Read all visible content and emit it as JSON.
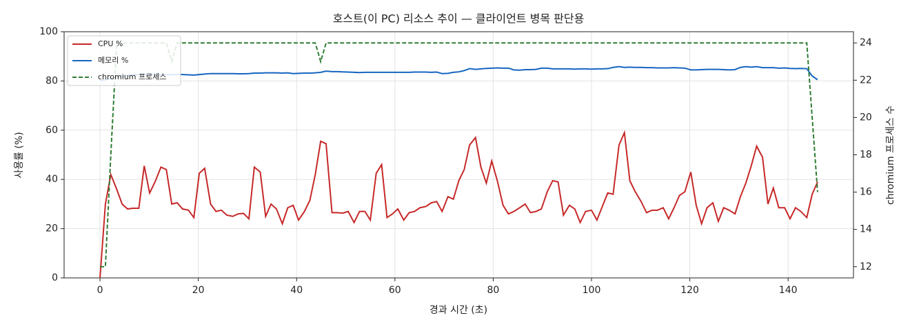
{
  "chart_data": {
    "type": "line",
    "title": "호스트(이 PC) 리소스 추이 — 클라이언트 병목 판단용",
    "x_label": "경과 시간 (초)",
    "y_label": "사용률 (%)",
    "y2_label": "chromium 프로세스 수",
    "xlim": [
      -7.3,
      153.3
    ],
    "xticks": [
      0,
      20,
      40,
      60,
      80,
      100,
      120,
      140
    ],
    "ylim": [
      0,
      100
    ],
    "yticks": [
      0,
      20,
      40,
      60,
      80,
      100
    ],
    "y2lim": [
      11.4,
      24.6
    ],
    "y2ticks": [
      12,
      14,
      16,
      18,
      20,
      22,
      24
    ],
    "grid": true,
    "legend": "upper left",
    "x": [
      0,
      1.1,
      2.2,
      3.4,
      4.5,
      5.6,
      6.7,
      7.9,
      9.0,
      10.1,
      11.2,
      12.4,
      13.5,
      14.6,
      15.7,
      16.8,
      18.0,
      19.1,
      20.2,
      21.3,
      22.5,
      23.6,
      24.7,
      25.8,
      27.0,
      28.1,
      29.2,
      30.3,
      31.4,
      32.6,
      33.7,
      34.8,
      35.9,
      37.1,
      38.2,
      39.3,
      40.4,
      41.6,
      42.7,
      43.8,
      44.9,
      46.0,
      47.2,
      48.3,
      49.4,
      50.5,
      51.7,
      52.8,
      53.9,
      55.0,
      56.2,
      57.3,
      58.4,
      59.5,
      60.6,
      61.8,
      62.9,
      64.0,
      65.1,
      66.3,
      67.4,
      68.5,
      69.6,
      70.8,
      71.9,
      73.0,
      74.1,
      75.2,
      76.4,
      77.5,
      78.6,
      79.7,
      80.9,
      82.0,
      83.1,
      84.2,
      85.4,
      86.5,
      87.6,
      88.7,
      89.8,
      91.0,
      92.1,
      93.2,
      94.3,
      95.5,
      96.6,
      97.7,
      98.8,
      100.0,
      101.1,
      102.2,
      103.3,
      104.4,
      105.6,
      106.7,
      107.8,
      108.9,
      110.1,
      111.2,
      112.3,
      113.4,
      114.6,
      115.7,
      116.8,
      117.9,
      119.0,
      120.2,
      121.3,
      122.4,
      123.5,
      124.7,
      125.8,
      126.9,
      128.0,
      129.2,
      130.3,
      131.4,
      132.5,
      133.6,
      134.8,
      135.9,
      137.0,
      138.1,
      139.3,
      140.4,
      141.5,
      142.6,
      143.8,
      144.9,
      146.0
    ],
    "series": [
      {
        "name": "CPU %",
        "color": "#c62828",
        "linestyle": "solid",
        "values": [
          0,
          30,
          42,
          36,
          30,
          28,
          28.3,
          28.3,
          45.5,
          34.5,
          39,
          45,
          44,
          30,
          30.5,
          28,
          27.5,
          24.5,
          42.5,
          44.5,
          30,
          27,
          27.5,
          25.5,
          25,
          26,
          26.2,
          24,
          45,
          43,
          25,
          30,
          28,
          22,
          28.5,
          29.5,
          23.5,
          27,
          31.5,
          42,
          55.5,
          54.5,
          26.5,
          26.5,
          26.3,
          27,
          22.5,
          27,
          27,
          23.5,
          42.5,
          46,
          24.5,
          26,
          28,
          23.5,
          26.5,
          27,
          28.5,
          29,
          30.5,
          31,
          27,
          33,
          32,
          39.5,
          44,
          54,
          57,
          45,
          38.5,
          47.5,
          39,
          29.5,
          26,
          27,
          28.5,
          30,
          26.5,
          27,
          28,
          35,
          39.5,
          39,
          25.5,
          29.5,
          28,
          22.5,
          27,
          27.5,
          23.5,
          29,
          34.5,
          34,
          54,
          59,
          39.5,
          35,
          31,
          26.5,
          27.5,
          27.5,
          28.5,
          24,
          28.5,
          33.5,
          35,
          43,
          29.5,
          22,
          28.5,
          30.5,
          23,
          28.5,
          27.5,
          26,
          33,
          38.5,
          45.5,
          53.5,
          49,
          30,
          36.5,
          28.5,
          28.5,
          24,
          28.5,
          27,
          24.5,
          34,
          39
        ]
      },
      {
        "name": "메모리 %",
        "color": "#1565c0",
        "linestyle": "solid",
        "values": [
          80,
          80.5,
          81,
          81.5,
          82,
          82.3,
          82.5,
          82.6,
          82.5,
          82.7,
          82.6,
          82.5,
          82.6,
          82.5,
          82.7,
          82.6,
          82.5,
          82.4,
          82.6,
          82.8,
          83,
          83,
          83,
          83,
          83,
          82.9,
          82.9,
          83,
          83.2,
          83.2,
          83.3,
          83.3,
          83.3,
          83.2,
          83.3,
          83,
          83.1,
          83.2,
          83.2,
          83.3,
          83.5,
          84,
          83.8,
          83.8,
          83.7,
          83.6,
          83.5,
          83.4,
          83.5,
          83.5,
          83.5,
          83.5,
          83.5,
          83.5,
          83.5,
          83.5,
          83.5,
          83.6,
          83.6,
          83.6,
          83.5,
          83.6,
          83,
          83.1,
          83.5,
          83.7,
          84.2,
          85,
          84.7,
          84.9,
          85.1,
          85.2,
          85.3,
          85.2,
          85.2,
          84.5,
          84.4,
          84.6,
          84.6,
          84.7,
          85.2,
          85.2,
          84.9,
          84.9,
          84.9,
          84.9,
          84.8,
          84.9,
          84.9,
          84.8,
          84.9,
          84.9,
          85,
          85.5,
          85.8,
          85.5,
          85.6,
          85.5,
          85.5,
          85.4,
          85.4,
          85.3,
          85.3,
          85.3,
          85.4,
          85.3,
          85.2,
          84.5,
          84.5,
          84.6,
          84.7,
          84.7,
          84.7,
          84.6,
          84.5,
          84.6,
          85.5,
          85.8,
          85.6,
          85.8,
          85.4,
          85.4,
          85.4,
          85.2,
          85.3,
          85.1,
          85,
          85.1,
          85,
          82,
          80.5
        ]
      },
      {
        "name": "chromium 프로세스",
        "color": "#2e7d32",
        "linestyle": "dashed",
        "axis": "y2",
        "values": [
          12,
          12,
          18,
          24,
          24,
          24,
          24,
          24,
          24,
          24,
          24,
          24,
          24,
          23,
          24,
          24,
          24,
          24,
          24,
          24,
          24,
          24,
          24,
          24,
          24,
          24,
          24,
          24,
          24,
          24,
          24,
          24,
          24,
          24,
          24,
          24,
          24,
          24,
          24,
          24,
          23,
          24,
          24,
          24,
          24,
          24,
          24,
          24,
          24,
          24,
          24,
          24,
          24,
          24,
          24,
          24,
          24,
          24,
          24,
          24,
          24,
          24,
          24,
          24,
          24,
          24,
          24,
          24,
          24,
          24,
          24,
          24,
          24,
          24,
          24,
          24,
          24,
          24,
          24,
          24,
          24,
          24,
          24,
          24,
          24,
          24,
          24,
          24,
          24,
          24,
          24,
          24,
          24,
          24,
          24,
          24,
          24,
          24,
          24,
          24,
          24,
          24,
          24,
          24,
          24,
          24,
          24,
          24,
          24,
          24,
          24,
          24,
          24,
          24,
          24,
          24,
          24,
          24,
          24,
          24,
          24,
          24,
          24,
          24,
          24,
          24,
          24,
          24,
          24,
          20,
          16
        ]
      }
    ]
  }
}
